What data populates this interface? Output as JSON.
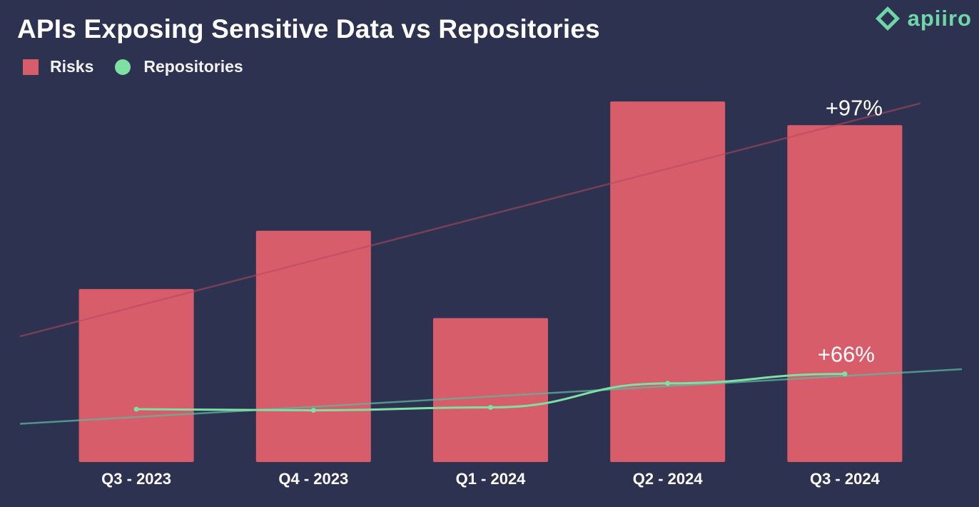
{
  "colors": {
    "background": "#2d3250",
    "risks": "#d85d6a",
    "repositories": "#7fe0a4",
    "risk_trend": "#b24b5f",
    "repo_trend": "#5fb5a2",
    "brand": "#6fd6a8"
  },
  "brand": {
    "logo_text": "apiiro",
    "logo_icon": "apiiro-diamond-icon"
  },
  "chart_data": {
    "type": "bar",
    "title": "APIs Exposing Sensitive Data vs Repositories",
    "xlabel": "",
    "ylabel": "",
    "grid": false,
    "legend_position": "top-left",
    "categories": [
      "Q3 - 2023",
      "Q4 - 2023",
      "Q1 - 2024",
      "Q2 - 2024",
      "Q3 - 2024"
    ],
    "ylim": [
      0,
      100
    ],
    "series": [
      {
        "name": "Risks",
        "type": "bar",
        "color": "#d85d6a",
        "values": [
          47.5,
          63.5,
          39.5,
          99,
          92.5
        ]
      },
      {
        "name": "Repositories",
        "type": "line",
        "color": "#7fe0a4",
        "values": [
          14.5,
          14.2,
          15.0,
          21.6,
          24.2
        ]
      }
    ],
    "trendlines": [
      {
        "series": "Risks",
        "start": 34.5,
        "end": 98.5
      },
      {
        "series": "Repositories",
        "start": 10.5,
        "end": 25.5
      }
    ],
    "annotations": [
      {
        "text": "+97%",
        "series": "Risks",
        "category_index": 4
      },
      {
        "text": "+66%",
        "series": "Repositories",
        "category_index": 4
      }
    ]
  }
}
